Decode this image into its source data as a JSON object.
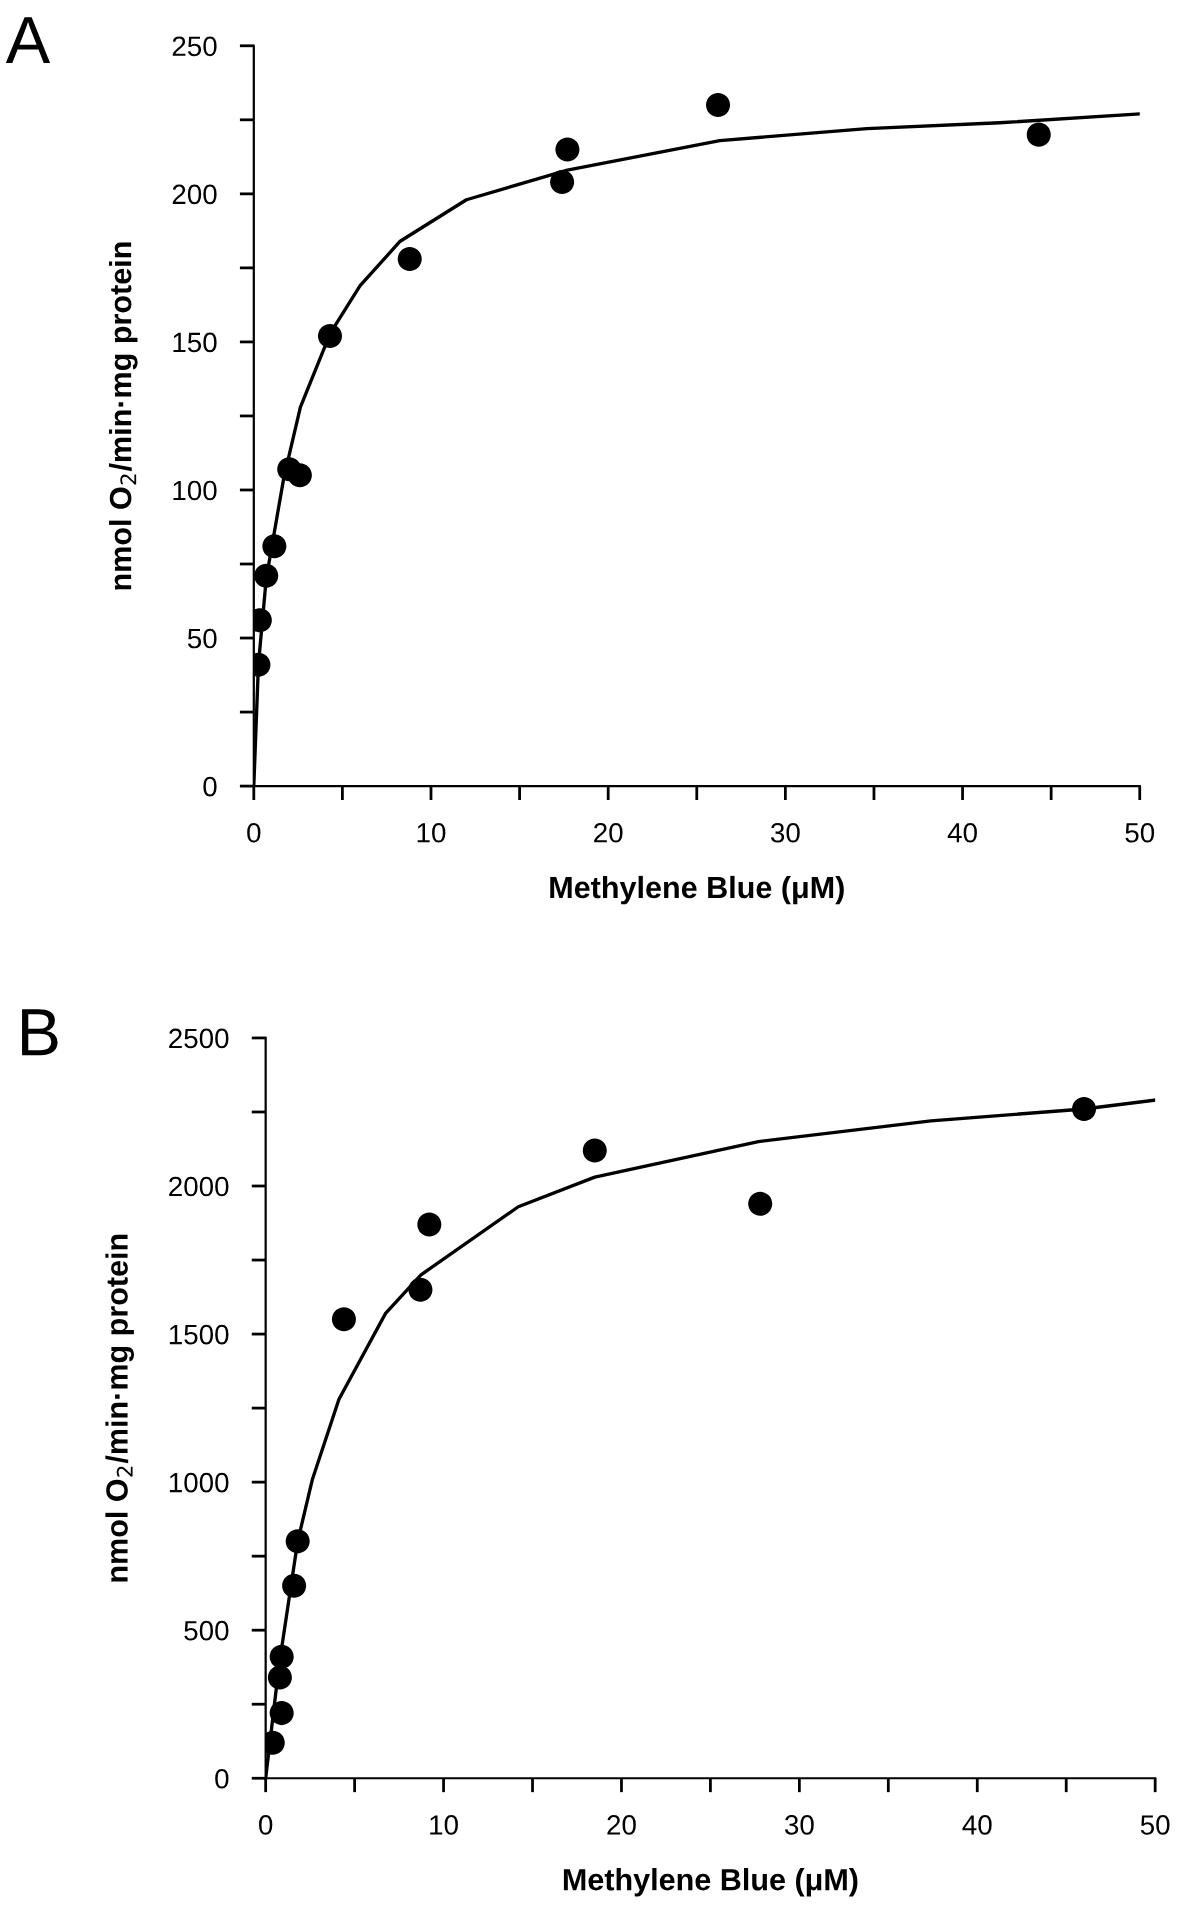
{
  "chart_data": [
    {
      "type": "scatter",
      "title": "A",
      "xlabel": "Methylene Blue (μM)",
      "ylabel": "nmol O$_{2}$/min·mg protein",
      "xlim": [
        0,
        50
      ],
      "xticks": [
        0,
        {
          "value": 5,
          "label": null
        },
        10,
        {
          "value": 15,
          "label": null
        },
        20,
        {
          "value": 25,
          "label": null
        },
        30,
        {
          "value": 35,
          "label": null
        },
        40,
        {
          "value": 45,
          "label": null
        },
        50
      ],
      "ylim": [
        0,
        250
      ],
      "yticks": [
        0,
        {
          "value": 25,
          "label": null
        },
        50,
        {
          "value": 75,
          "label": null
        },
        100,
        {
          "value": 125,
          "label": null
        },
        150,
        {
          "value": 175,
          "label": null
        },
        200,
        {
          "value": 225,
          "label": null
        },
        250
      ],
      "grid": false,
      "legend": false,
      "series": [
        {
          "marker": "circle",
          "color": "#000000",
          "x": [
            0.26,
            0.34,
            0.7,
            1.16,
            2.0,
            2.6,
            4.3,
            8.8,
            17.4,
            17.7,
            26.2,
            44.3
          ],
          "values": [
            41,
            56,
            71,
            81,
            107,
            105,
            152,
            178,
            204,
            215,
            230,
            220
          ]
        },
        {
          "type": "line",
          "marker": "none",
          "line_style": "solid",
          "color": "#000000",
          "x": [
            0,
            0.26,
            0.7,
            1.69,
            2.63,
            4.32,
            6.0,
            8.26,
            12.0,
            17.7,
            26.3,
            34.6,
            42.1,
            50
          ],
          "values": [
            0,
            41,
            70,
            104,
            128,
            153,
            169,
            184,
            198,
            208,
            218,
            222,
            224,
            227
          ]
        }
      ]
    },
    {
      "type": "scatter",
      "title": "B",
      "xlabel": "Methylene Blue (μM)",
      "ylabel": "nmol O$_{2}$/min·mg protein",
      "xlim": [
        0,
        50
      ],
      "xticks": [
        0,
        {
          "value": 5,
          "label": null
        },
        10,
        {
          "value": 15,
          "label": null
        },
        20,
        {
          "value": 25,
          "label": null
        },
        30,
        {
          "value": 35,
          "label": null
        },
        40,
        {
          "value": 45,
          "label": null
        },
        50
      ],
      "ylim": [
        0,
        2500
      ],
      "yticks": [
        0,
        {
          "value": 250,
          "label": null
        },
        500,
        {
          "value": 750,
          "label": null
        },
        1000,
        {
          "value": 1250,
          "label": null
        },
        1500,
        {
          "value": 1750,
          "label": null
        },
        2000,
        {
          "value": 2250,
          "label": null
        },
        2500
      ],
      "grid": false,
      "legend": false,
      "series": [
        {
          "marker": "circle",
          "color": "#000000",
          "x": [
            0.4,
            0.9,
            0.8,
            0.9,
            1.6,
            1.8,
            4.4,
            8.7,
            9.2,
            18.5,
            27.8,
            46.0
          ],
          "values": [
            120,
            220,
            340,
            410,
            650,
            800,
            1550,
            1650,
            1870,
            2120,
            1940,
            2260
          ]
        },
        {
          "type": "line",
          "marker": "none",
          "line_style": "solid",
          "color": "#000000",
          "x": [
            0,
            0.75,
            1.8,
            2.63,
            4.12,
            6.74,
            8.73,
            14.2,
            18.5,
            27.7,
            37.4,
            46.0,
            50
          ],
          "values": [
            0,
            380,
            800,
            1010,
            1280,
            1570,
            1700,
            1930,
            2030,
            2150,
            2220,
            2260,
            2290
          ]
        }
      ]
    }
  ]
}
